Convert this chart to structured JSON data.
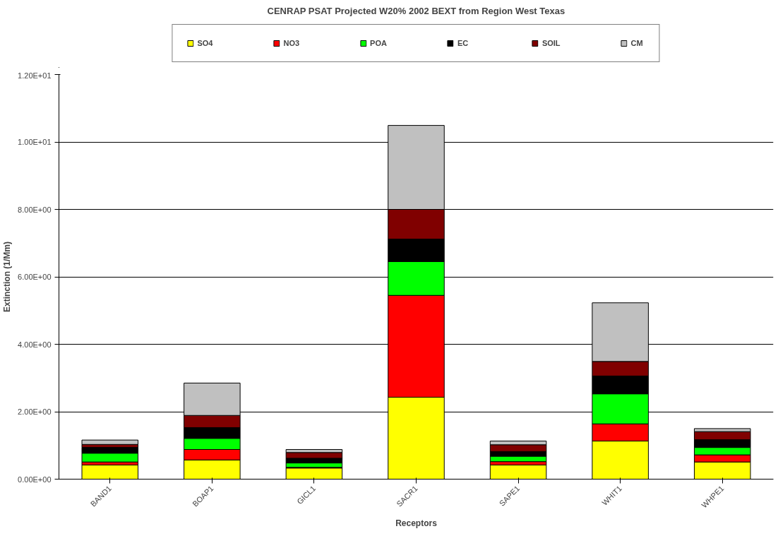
{
  "chart_data": {
    "type": "bar",
    "stacked": true,
    "title": "CENRAP PSAT Projected W20% 2002 BEXT from Region West Texas",
    "xlabel": "Receptors",
    "ylabel": "Extinction (1/Mm)",
    "categories": [
      "BAND1",
      "BOAP1",
      "GICL1",
      "SACR1",
      "SAPE1",
      "WHIT1",
      "WHPE1"
    ],
    "series": [
      {
        "name": "SO4",
        "color": "#ffff00",
        "values": [
          0.42,
          0.57,
          0.33,
          2.43,
          0.42,
          1.13,
          0.51
        ]
      },
      {
        "name": "NO3",
        "color": "#ff0000",
        "values": [
          0.09,
          0.31,
          0.02,
          3.02,
          0.1,
          0.51,
          0.21
        ]
      },
      {
        "name": "POA",
        "color": "#00ff00",
        "values": [
          0.26,
          0.33,
          0.13,
          1.0,
          0.16,
          0.89,
          0.22
        ]
      },
      {
        "name": "EC",
        "color": "#000000",
        "values": [
          0.17,
          0.32,
          0.14,
          0.67,
          0.14,
          0.53,
          0.23
        ]
      },
      {
        "name": "SOIL",
        "color": "#800000",
        "values": [
          0.09,
          0.36,
          0.17,
          0.88,
          0.2,
          0.43,
          0.24
        ]
      },
      {
        "name": "CM",
        "color": "#c0c0c0",
        "values": [
          0.13,
          0.96,
          0.09,
          2.49,
          0.11,
          1.74,
          0.09
        ]
      }
    ],
    "ylim": [
      0,
      12
    ],
    "yticks": [
      {
        "value": 0,
        "label": "0.00E+00"
      },
      {
        "value": 2,
        "label": "2.00E+00"
      },
      {
        "value": 4,
        "label": "4.00E+00"
      },
      {
        "value": 6,
        "label": "6.00E+00"
      },
      {
        "value": 8,
        "label": "8.00E+00"
      },
      {
        "value": 10,
        "label": "1.00E+01"
      },
      {
        "value": 12,
        "label": "1.20E+01"
      }
    ],
    "grid": "y",
    "legend": "top"
  }
}
